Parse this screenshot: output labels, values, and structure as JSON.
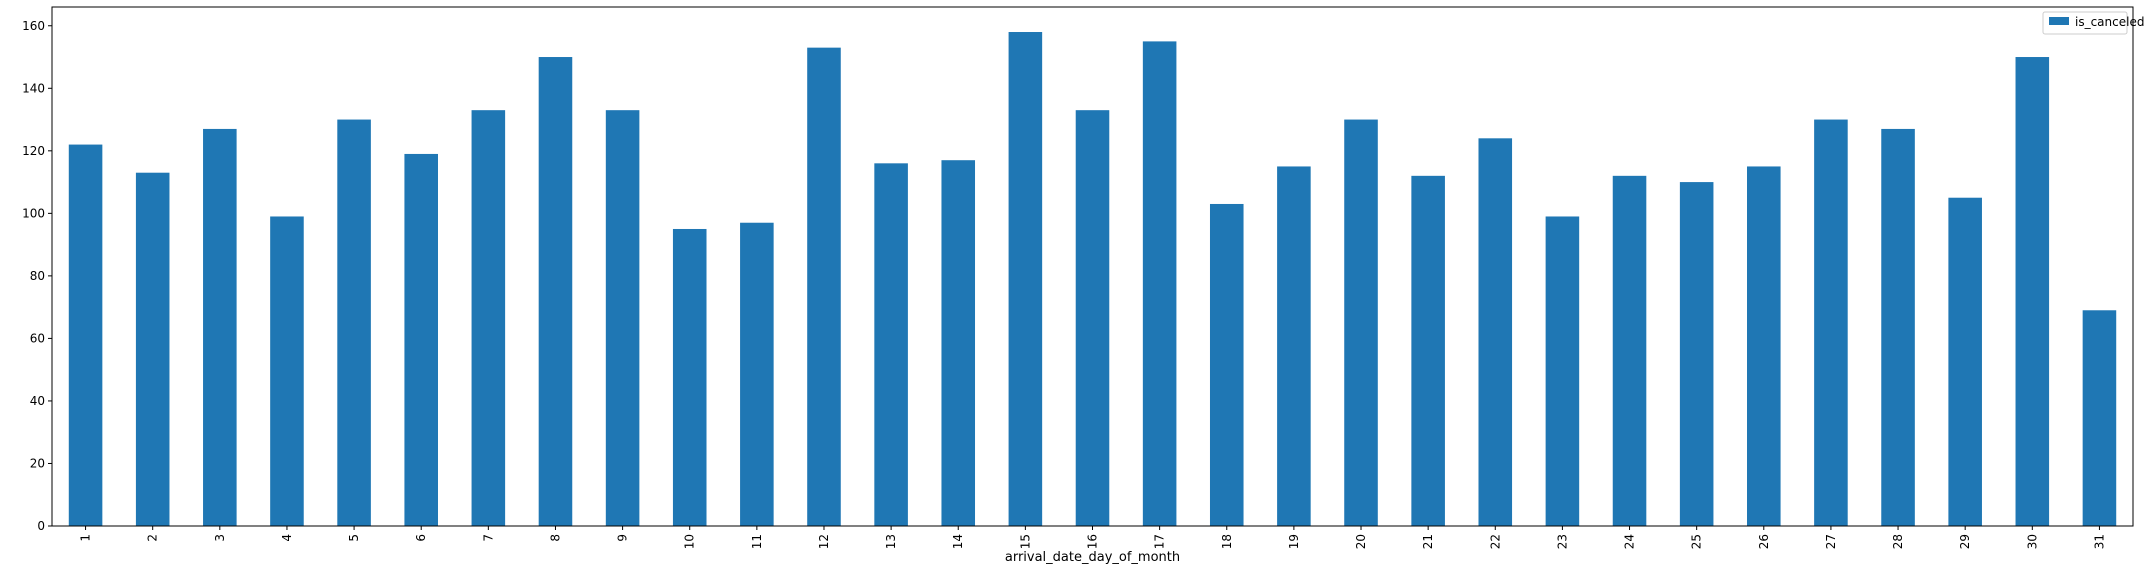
{
  "chart_data": {
    "type": "bar",
    "title": "",
    "xlabel": "arrival_date_day_of_month",
    "ylabel": "",
    "categories": [
      "1",
      "2",
      "3",
      "4",
      "5",
      "6",
      "7",
      "8",
      "9",
      "10",
      "11",
      "12",
      "13",
      "14",
      "15",
      "16",
      "17",
      "18",
      "19",
      "20",
      "21",
      "22",
      "23",
      "24",
      "25",
      "26",
      "27",
      "28",
      "29",
      "30",
      "31"
    ],
    "series": [
      {
        "name": "is_canceled",
        "color": "#1f77b4",
        "values": [
          122,
          113,
          127,
          99,
          130,
          119,
          133,
          150,
          133,
          95,
          97,
          153,
          116,
          117,
          158,
          133,
          155,
          103,
          115,
          130,
          112,
          124,
          99,
          112,
          110,
          115,
          130,
          127,
          105,
          150,
          69
        ]
      }
    ],
    "ylim": [
      0,
      166
    ],
    "yticks": [
      0,
      20,
      40,
      60,
      80,
      100,
      120,
      140,
      160
    ],
    "grid": false,
    "legend_position": "top-right"
  }
}
